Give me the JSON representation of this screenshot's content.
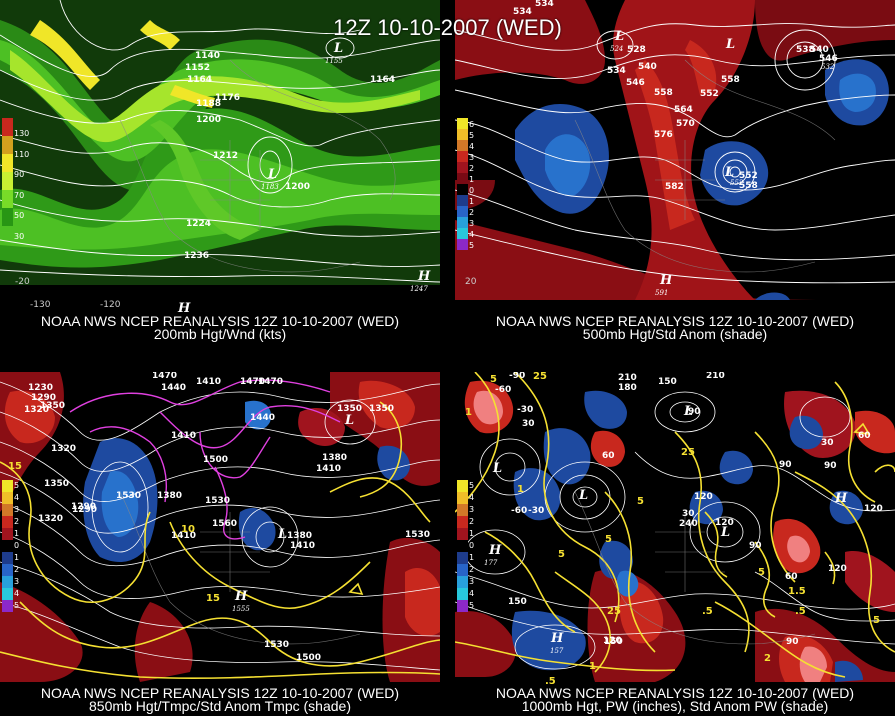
{
  "title": "12Z 10-10-2007 (WED)",
  "panels": {
    "p1": {
      "caption_line1": "NOAA NWS NCEP REANALYSIS 12Z 10-10-2007 (WED)",
      "caption_line2": "200mb Hgt/Wnd (kts)",
      "colorbar": [
        "130",
        "110",
        "90",
        "70",
        "50",
        "30"
      ],
      "colorbar_colors": [
        "#c8281e",
        "#d2a01e",
        "#f0e628",
        "#c8f032",
        "#78dc28",
        "#289614"
      ],
      "contours": [
        "1140",
        "1152",
        "1164",
        "1176",
        "1188",
        "1200",
        "1212",
        "1200",
        "1224",
        "1236",
        "1164"
      ],
      "lows": [
        "L",
        "1155",
        "L",
        "1183"
      ],
      "highs": [
        "H",
        "1247"
      ],
      "lon": [
        "-130",
        "-120",
        "-20"
      ]
    },
    "p2": {
      "caption_line1": "NOAA NWS NCEP REANALYSIS 12Z 10-10-2007 (WED)",
      "caption_line2": "500mb Hgt/Std Anom (shade)",
      "colorbar": [
        "6",
        "5",
        "4",
        "3",
        "2",
        "1",
        "0",
        "1",
        "2",
        "3",
        "4",
        "5"
      ],
      "colorbar_colors": [
        "#f0e628",
        "#f0be28",
        "#d27828",
        "#c8281e",
        "#a0141e",
        "#780a14",
        "#000000",
        "#1e3c8c",
        "#2864c8",
        "#28a0dc",
        "#28c8dc",
        "#8c28c8"
      ],
      "contours": [
        "534",
        "528",
        "534",
        "540",
        "546",
        "552",
        "558",
        "558",
        "564",
        "570",
        "576",
        "582",
        "552",
        "538",
        "540",
        "546",
        "558",
        "534"
      ],
      "lows": [
        "L",
        "524",
        "L",
        "552",
        "L",
        "532"
      ],
      "highs": [
        "H",
        "591"
      ],
      "lon": [
        "20"
      ]
    },
    "p3": {
      "caption_line1": "NOAA NWS NCEP REANALYSIS 12Z 10-10-2007 (WED)",
      "caption_line2": "850mb Hgt/Tmpc/Std Anom Tmpc (shade)",
      "colorbar": [
        "5",
        "4",
        "3",
        "2",
        "1",
        "0",
        "1",
        "2",
        "3",
        "4",
        "5"
      ],
      "contours": [
        "1230",
        "1290",
        "1320",
        "1350",
        "1470",
        "1440",
        "1410",
        "1470",
        "1470",
        "1440",
        "1350",
        "1410",
        "1500",
        "1290",
        "1350",
        "1320",
        "1530",
        "1380",
        "1560",
        "1530",
        "1380",
        "1410",
        "1530",
        "1500",
        "1530",
        "1350",
        "1410",
        "1320",
        "1290",
        "1380",
        "1410"
      ],
      "temps": [
        "15",
        "10",
        "15"
      ],
      "lows": [
        "L",
        "L"
      ],
      "highs": [
        "H",
        "1555"
      ]
    },
    "p4": {
      "caption_line1": "NOAA NWS NCEP REANALYSIS 12Z 10-10-2007 (WED)",
      "caption_line2": "1000mb Hgt, PW (inches), Std Anom PW (shade)",
      "colorbar": [
        "5",
        "4",
        "3",
        "2",
        "1",
        "0",
        "1",
        "2",
        "3",
        "4",
        "5"
      ],
      "contours": [
        "-90",
        "-60",
        "-30",
        "30",
        "210",
        "180",
        "150",
        "210",
        "90",
        "60",
        "90",
        "60",
        "-30",
        "-60",
        "90",
        "30",
        "120",
        "120",
        "150",
        "120",
        "90",
        "60",
        "90",
        "240",
        "30",
        "120",
        "150",
        "120"
      ],
      "pw": [
        "25",
        "1",
        "5",
        "25",
        "5",
        "1",
        "5",
        "5",
        ".5",
        ".5",
        "1.5",
        "25",
        "1",
        "2",
        "5",
        "5",
        ".5"
      ],
      "lows": [
        "L",
        "L",
        "L",
        "L"
      ],
      "highs": [
        "H",
        "177",
        "H",
        "157",
        "H"
      ]
    }
  }
}
